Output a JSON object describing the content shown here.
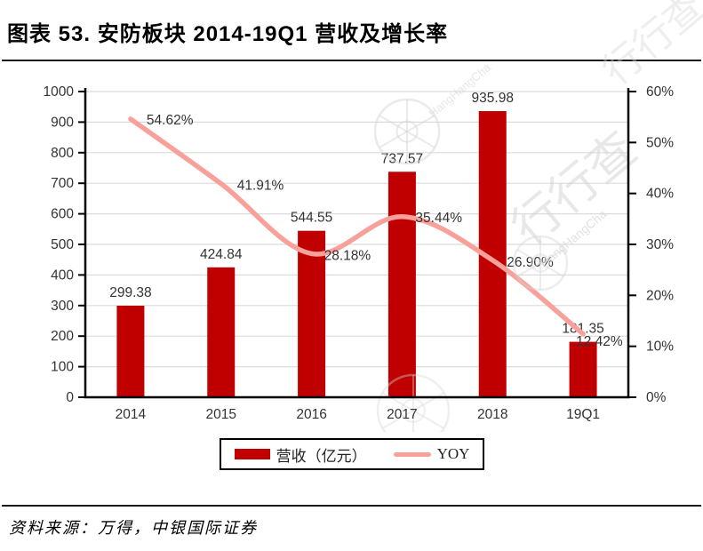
{
  "title": "图表 53. 安防板块 2014-19Q1 营收及增长率",
  "source": "资料来源：万得，中银国际证券",
  "legend": [
    {
      "label": "营收（亿元）",
      "type": "bar"
    },
    {
      "label": "YOY",
      "type": "line"
    }
  ],
  "watermark": {
    "text": "行行查",
    "subtext": "HangHangCha"
  },
  "colors": {
    "bar": "#c00000",
    "line": "#f8a09a",
    "grid": "#dcdcdc",
    "axis": "#000000",
    "label": "#333333",
    "watermark": "#d6d6d6"
  },
  "chart_data": {
    "type": "bar",
    "title": "图表 53. 安防板块 2014-19Q1 营收及增长率",
    "categories": [
      "2014",
      "2015",
      "2016",
      "2017",
      "2018",
      "19Q1"
    ],
    "series": [
      {
        "name": "营收（亿元）",
        "type": "bar",
        "axis": "left",
        "values": [
          299.38,
          424.84,
          544.55,
          737.57,
          935.98,
          181.35
        ],
        "labels": [
          "299.38",
          "424.84",
          "544.55",
          "737.57",
          "935.98",
          "181.35"
        ]
      },
      {
        "name": "YOY",
        "type": "line",
        "axis": "right",
        "values": [
          54.62,
          41.91,
          28.18,
          35.44,
          26.9,
          12.42
        ],
        "labels": [
          "54.62%",
          "41.91%",
          "28.18%",
          "35.44%",
          "26.90%",
          "12.42%"
        ]
      }
    ],
    "left_axis": {
      "min": 0,
      "max": 1000,
      "step": 100,
      "ticks": [
        "0",
        "100",
        "200",
        "300",
        "400",
        "500",
        "600",
        "700",
        "800",
        "900",
        "1000"
      ]
    },
    "right_axis": {
      "min": 0,
      "max": 60,
      "step": 10,
      "suffix": "%",
      "ticks": [
        "0%",
        "10%",
        "20%",
        "30%",
        "40%",
        "50%",
        "60%"
      ]
    },
    "grid": true,
    "legend_position": "bottom"
  }
}
